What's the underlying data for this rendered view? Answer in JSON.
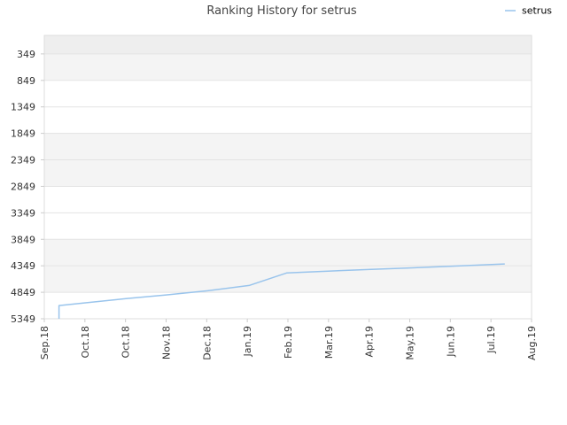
{
  "chart_data": {
    "type": "line",
    "title": "Ranking History for setrus",
    "xlabel": "",
    "ylabel": "",
    "y_inverted": true,
    "ylim": [
      5349,
      0
    ],
    "grid": true,
    "legend_position": "top-right",
    "x_ticks": [
      "Sep.18",
      "Oct.18",
      "Oct.18",
      "Nov.18",
      "Dec.18",
      "Jan.19",
      "Feb.19",
      "Mar.19",
      "Apr.19",
      "May.19",
      "Jun.19",
      "Jul.19",
      "Aug.19"
    ],
    "y_ticks": [
      "349",
      "849",
      "1349",
      "1849",
      "2349",
      "2849",
      "3349",
      "3849",
      "4349",
      "4849",
      "5349"
    ],
    "series": [
      {
        "name": "setrus",
        "color": "#99c4ec",
        "points": [
          {
            "x": "2018-09-12",
            "y": 5349
          },
          {
            "x": "2018-09-12",
            "y": 5100
          },
          {
            "x": "2018-10-01",
            "y": 5050
          },
          {
            "x": "2018-11-01",
            "y": 4970
          },
          {
            "x": "2018-12-01",
            "y": 4900
          },
          {
            "x": "2019-01-01",
            "y": 4820
          },
          {
            "x": "2019-02-01",
            "y": 4720
          },
          {
            "x": "2019-03-01",
            "y": 4485
          },
          {
            "x": "2019-04-01",
            "y": 4450
          },
          {
            "x": "2019-05-01",
            "y": 4420
          },
          {
            "x": "2019-06-01",
            "y": 4390
          },
          {
            "x": "2019-07-01",
            "y": 4360
          },
          {
            "x": "2019-08-01",
            "y": 4325
          },
          {
            "x": "2019-08-11",
            "y": 4315
          }
        ]
      }
    ]
  }
}
